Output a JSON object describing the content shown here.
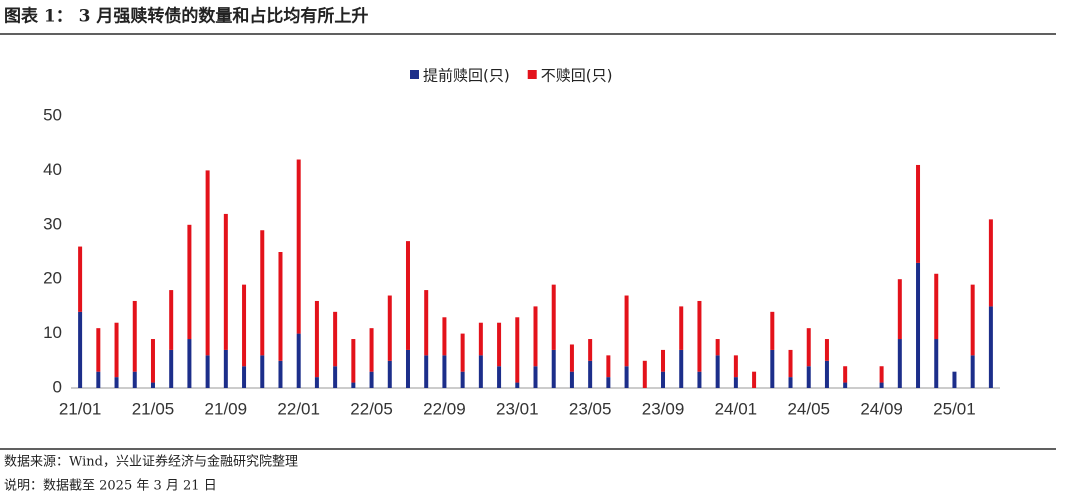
{
  "chart_data": {
    "type": "stacked_bar",
    "title": "图表 1： 3 月强赎转债的数量和占比均有所上升",
    "source": "数据来源：Wind，兴业证券经济与金融研究院整理",
    "note": "说明：数据截至 2025 年 3 月 21 日",
    "categories": [
      "21/01",
      null,
      null,
      null,
      "21/05",
      null,
      null,
      null,
      "21/09",
      null,
      null,
      null,
      "22/01",
      null,
      null,
      null,
      "22/05",
      null,
      null,
      null,
      "22/09",
      null,
      null,
      null,
      "23/01",
      null,
      null,
      null,
      "23/05",
      null,
      null,
      null,
      "23/09",
      null,
      null,
      null,
      "24/01",
      null,
      null,
      null,
      "24/05",
      null,
      null,
      null,
      "24/09",
      null,
      null,
      null,
      "25/01",
      null,
      null
    ],
    "series": [
      {
        "name": "提前赎回(只)",
        "color": "#1c2e8a",
        "values": [
          14,
          3,
          2,
          3,
          1,
          7,
          9,
          6,
          7,
          4,
          6,
          5,
          10,
          2,
          4,
          1,
          3,
          5,
          7,
          6,
          6,
          3,
          6,
          4,
          1,
          4,
          7,
          3,
          5,
          2,
          4,
          0,
          3,
          7,
          3,
          6,
          2,
          0,
          7,
          2,
          4,
          5,
          1,
          0,
          1,
          9,
          23,
          9,
          3,
          6,
          15
        ]
      },
      {
        "name": "不赎回(只)",
        "color": "#e3121b",
        "values": [
          12,
          8,
          10,
          13,
          8,
          11,
          21,
          34,
          25,
          15,
          23,
          20,
          32,
          14,
          10,
          8,
          8,
          12,
          20,
          12,
          7,
          7,
          6,
          8,
          12,
          11,
          12,
          5,
          4,
          4,
          13,
          5,
          4,
          8,
          13,
          3,
          4,
          3,
          7,
          5,
          7,
          4,
          3,
          0,
          3,
          11,
          18,
          12,
          0,
          13,
          16
        ]
      }
    ],
    "ylim": [
      0,
      50
    ],
    "yticks": [
      0,
      10,
      20,
      30,
      40,
      50
    ],
    "grid": false,
    "legend": "top"
  }
}
